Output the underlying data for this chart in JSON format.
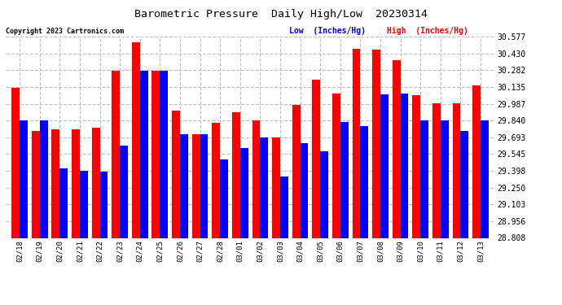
{
  "title": "Barometric Pressure  Daily High/Low  20230314",
  "copyright": "Copyright 2023 Cartronics.com",
  "legend_low": "Low  (Inches/Hg)",
  "legend_high": "High  (Inches/Hg)",
  "dates": [
    "02/18",
    "02/19",
    "02/20",
    "02/21",
    "02/22",
    "02/23",
    "02/24",
    "02/25",
    "02/26",
    "02/27",
    "02/28",
    "03/01",
    "03/02",
    "03/03",
    "03/04",
    "03/05",
    "03/06",
    "03/07",
    "03/08",
    "03/09",
    "03/10",
    "03/11",
    "03/12",
    "03/13"
  ],
  "high": [
    30.13,
    29.75,
    29.76,
    29.76,
    29.78,
    30.28,
    30.53,
    30.28,
    29.93,
    29.72,
    29.82,
    29.91,
    29.84,
    29.69,
    29.98,
    30.2,
    30.08,
    30.47,
    30.46,
    30.37,
    30.06,
    29.99,
    29.99,
    30.15
  ],
  "low": [
    29.84,
    29.84,
    29.42,
    29.4,
    29.39,
    29.62,
    30.28,
    30.28,
    29.72,
    29.72,
    29.5,
    29.6,
    29.69,
    29.35,
    29.64,
    29.57,
    29.83,
    29.79,
    30.07,
    30.08,
    29.84,
    29.84,
    29.75,
    29.84
  ],
  "ymin": 28.808,
  "ymax": 30.577,
  "yticks": [
    28.808,
    28.956,
    29.103,
    29.25,
    29.398,
    29.545,
    29.693,
    29.84,
    29.987,
    30.135,
    30.282,
    30.43,
    30.577
  ],
  "bar_width": 0.4,
  "high_color": "#ff0000",
  "low_color": "#0000ff",
  "bg_color": "#ffffff",
  "grid_color": "#c0c0c0",
  "title_color": "#000000",
  "copyright_color": "#000000",
  "legend_low_color": "#0000ff",
  "legend_high_color": "#ff0000"
}
